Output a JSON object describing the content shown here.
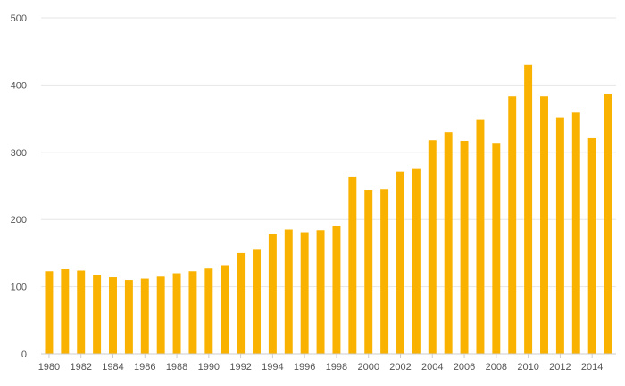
{
  "chart_data": {
    "type": "bar",
    "categories": [
      "1980",
      "1981",
      "1982",
      "1983",
      "1984",
      "1985",
      "1986",
      "1987",
      "1988",
      "1989",
      "1990",
      "1991",
      "1992",
      "1993",
      "1994",
      "1995",
      "1996",
      "1997",
      "1998",
      "1999",
      "2000",
      "2001",
      "2002",
      "2003",
      "2004",
      "2005",
      "2006",
      "2007",
      "2008",
      "2009",
      "2010",
      "2011",
      "2012",
      "2013",
      "2014",
      "2015"
    ],
    "x_tick_labels": [
      "1980",
      "1982",
      "1984",
      "1986",
      "1988",
      "1990",
      "1992",
      "1994",
      "1996",
      "1998",
      "2000",
      "2002",
      "2004",
      "2006",
      "2008",
      "2010",
      "2012",
      "2014"
    ],
    "values": [
      123,
      126,
      124,
      118,
      114,
      110,
      112,
      115,
      120,
      123,
      127,
      132,
      150,
      156,
      178,
      185,
      181,
      184,
      191,
      264,
      244,
      245,
      271,
      275,
      318,
      330,
      317,
      348,
      314,
      383,
      430,
      383,
      352,
      359,
      321,
      387
    ],
    "ylim": [
      0,
      500
    ],
    "y_ticks": [
      0,
      100,
      200,
      300,
      400,
      500
    ],
    "title": "",
    "xlabel": "",
    "ylabel": "",
    "grid": true,
    "bar_color": "#F9B200",
    "grid_color": "#E6E6E6",
    "axis_color": "#CCCCCC"
  }
}
